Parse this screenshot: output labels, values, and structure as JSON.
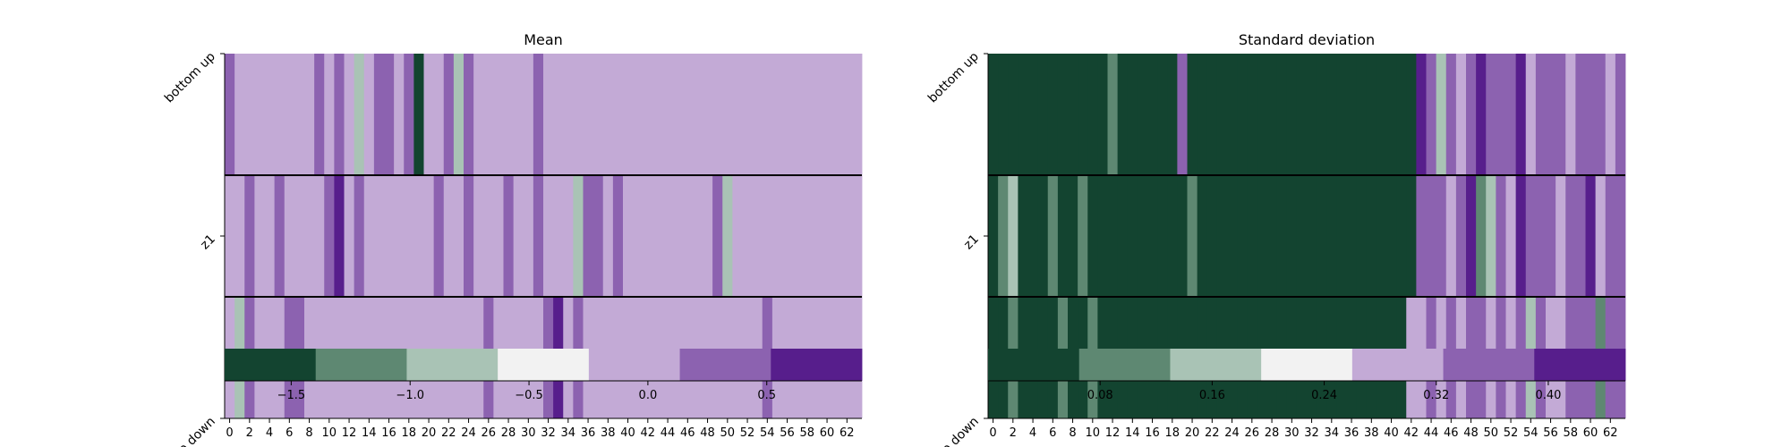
{
  "chart_data": [
    {
      "type": "heatmap",
      "title": "Mean",
      "rows": [
        "bottom up",
        "z1",
        "top down"
      ],
      "xticks": [
        0,
        2,
        4,
        6,
        8,
        10,
        12,
        14,
        16,
        18,
        20,
        22,
        24,
        26,
        28,
        30,
        32,
        34,
        36,
        38,
        40,
        42,
        44,
        46,
        48,
        50,
        52,
        54,
        56,
        58,
        60,
        62
      ],
      "colorbar": {
        "bins": [
          "#134430",
          "#5e8872",
          "#a9c3b5",
          "#f2f2f2",
          "#c3aad6",
          "#8c62b0",
          "#571e8c"
        ],
        "range": [
          -1.78,
          0.9
        ],
        "ticks": [
          -1.5,
          -1.0,
          -0.5,
          0.0,
          0.5
        ],
        "tick_labels": [
          "−1.5",
          "−1.0",
          "−0.5",
          "0.0",
          "0.5"
        ]
      },
      "values": [
        [
          0.25,
          -0.15,
          0.05,
          -0.15,
          0.05,
          0.05,
          -0.15,
          0.05,
          0.05,
          0.25,
          0.05,
          0.25,
          0.05,
          -1.0,
          0.05,
          0.25,
          0.25,
          0.05,
          0.25,
          -1.7,
          -0.15,
          0.05,
          0.25,
          -1.0,
          0.25,
          0.05,
          -0.15,
          0.05,
          -0.15,
          -0.15,
          0.05,
          0.25,
          -0.15,
          0.05,
          0.05,
          0.05,
          0.05,
          0.05,
          0.05,
          0.05,
          0.05,
          -0.15,
          0.05,
          0.05,
          0.05,
          0.05,
          -0.15,
          0.05,
          0.05,
          0.05,
          0.05,
          0.05,
          0.05,
          0.05,
          0.05,
          0.05,
          0.05,
          0.05,
          0.05,
          0.05,
          0.05,
          0.05,
          0.05,
          0.05
        ],
        [
          -0.15,
          -0.15,
          0.25,
          0.05,
          -0.15,
          0.25,
          -0.15,
          -0.15,
          0.05,
          0.05,
          0.25,
          0.65,
          0.05,
          0.25,
          0.05,
          0.05,
          -0.15,
          0.05,
          0.05,
          0.05,
          -0.15,
          0.25,
          0.05,
          -0.15,
          0.25,
          -0.15,
          0.05,
          0.05,
          0.25,
          0.05,
          0.05,
          0.25,
          0.05,
          0.05,
          0.05,
          -1.0,
          0.25,
          0.25,
          0.05,
          0.25,
          -0.15,
          -0.15,
          0.05,
          0.05,
          0.05,
          0.05,
          0.05,
          0.05,
          0.05,
          0.25,
          -1.0,
          0.05,
          0.05,
          0.05,
          0.05,
          0.05,
          0.05,
          0.05,
          0.05,
          0.05,
          0.05,
          0.05,
          0.05,
          0.05
        ],
        [
          0.05,
          -1.0,
          0.25,
          -0.15,
          0.05,
          -0.15,
          0.25,
          0.25,
          -0.15,
          0.05,
          0.05,
          0.05,
          0.05,
          0.05,
          0.05,
          0.05,
          0.05,
          0.05,
          -0.15,
          0.05,
          -0.15,
          -0.15,
          -0.15,
          0.05,
          0.05,
          -0.15,
          0.25,
          -0.15,
          -0.15,
          0.05,
          0.05,
          0.05,
          0.25,
          0.65,
          0.05,
          0.25,
          -0.15,
          0.05,
          0.05,
          0.05,
          -0.15,
          0.05,
          0.05,
          0.05,
          0.05,
          0.05,
          0.05,
          0.05,
          0.05,
          0.05,
          0.05,
          0.05,
          0.05,
          0.05,
          0.25,
          0.05,
          0.05,
          0.05,
          0.05,
          0.05,
          0.05,
          0.05,
          0.05,
          0.05
        ]
      ]
    },
    {
      "type": "heatmap",
      "title": "Standard deviation",
      "rows": [
        "bottom up",
        "z1",
        "top down"
      ],
      "xticks": [
        0,
        2,
        4,
        6,
        8,
        10,
        12,
        14,
        16,
        18,
        20,
        22,
        24,
        26,
        28,
        30,
        32,
        34,
        36,
        38,
        40,
        42,
        44,
        46,
        48,
        50,
        52,
        54,
        56,
        58,
        60,
        62
      ],
      "colorbar": {
        "bins": [
          "#134430",
          "#5e8872",
          "#a9c3b5",
          "#f2f2f2",
          "#c3aad6",
          "#8c62b0",
          "#571e8c"
        ],
        "range": [
          0.0,
          0.455
        ],
        "ticks": [
          0.08,
          0.16,
          0.24,
          0.32,
          0.4
        ],
        "tick_labels": [
          "0.08",
          "0.16",
          "0.24",
          "0.32",
          "0.40"
        ]
      },
      "values": [
        [
          0.03,
          0.03,
          0.03,
          0.03,
          0.03,
          0.03,
          0.03,
          0.03,
          0.03,
          0.03,
          0.03,
          0.03,
          0.1,
          0.03,
          0.03,
          0.03,
          0.03,
          0.03,
          0.03,
          0.36,
          0.03,
          0.03,
          0.03,
          0.03,
          0.03,
          0.03,
          0.03,
          0.03,
          0.03,
          0.03,
          0.03,
          0.03,
          0.03,
          0.03,
          0.03,
          0.03,
          0.03,
          0.03,
          0.03,
          0.03,
          0.03,
          0.03,
          0.03,
          0.42,
          0.36,
          0.16,
          0.36,
          0.3,
          0.36,
          0.42,
          0.36,
          0.36,
          0.36,
          0.42,
          0.3,
          0.36,
          0.36,
          0.36,
          0.3,
          0.36,
          0.36,
          0.36,
          0.3,
          0.36
        ],
        [
          0.03,
          0.1,
          0.16,
          0.03,
          0.03,
          0.03,
          0.1,
          0.03,
          0.03,
          0.1,
          0.03,
          0.03,
          0.03,
          0.03,
          0.03,
          0.03,
          0.03,
          0.03,
          0.03,
          0.03,
          0.1,
          0.03,
          0.03,
          0.03,
          0.03,
          0.03,
          0.03,
          0.03,
          0.03,
          0.03,
          0.03,
          0.03,
          0.03,
          0.03,
          0.03,
          0.03,
          0.03,
          0.03,
          0.03,
          0.03,
          0.03,
          0.03,
          0.03,
          0.36,
          0.36,
          0.36,
          0.3,
          0.36,
          0.42,
          0.1,
          0.16,
          0.36,
          0.3,
          0.42,
          0.36,
          0.36,
          0.36,
          0.3,
          0.36,
          0.36,
          0.42,
          0.3,
          0.36,
          0.36
        ],
        [
          0.03,
          0.03,
          0.1,
          0.03,
          0.03,
          0.03,
          0.03,
          0.1,
          0.03,
          0.03,
          0.1,
          0.03,
          0.03,
          0.03,
          0.03,
          0.03,
          0.03,
          0.03,
          0.03,
          0.03,
          0.03,
          0.03,
          0.03,
          0.03,
          0.03,
          0.03,
          0.03,
          0.03,
          0.03,
          0.03,
          0.03,
          0.03,
          0.03,
          0.03,
          0.03,
          0.03,
          0.03,
          0.03,
          0.03,
          0.03,
          0.03,
          0.03,
          0.3,
          0.3,
          0.36,
          0.3,
          0.36,
          0.3,
          0.36,
          0.36,
          0.3,
          0.36,
          0.3,
          0.36,
          0.16,
          0.36,
          0.3,
          0.3,
          0.36,
          0.36,
          0.36,
          0.1,
          0.36,
          0.36
        ]
      ]
    }
  ]
}
